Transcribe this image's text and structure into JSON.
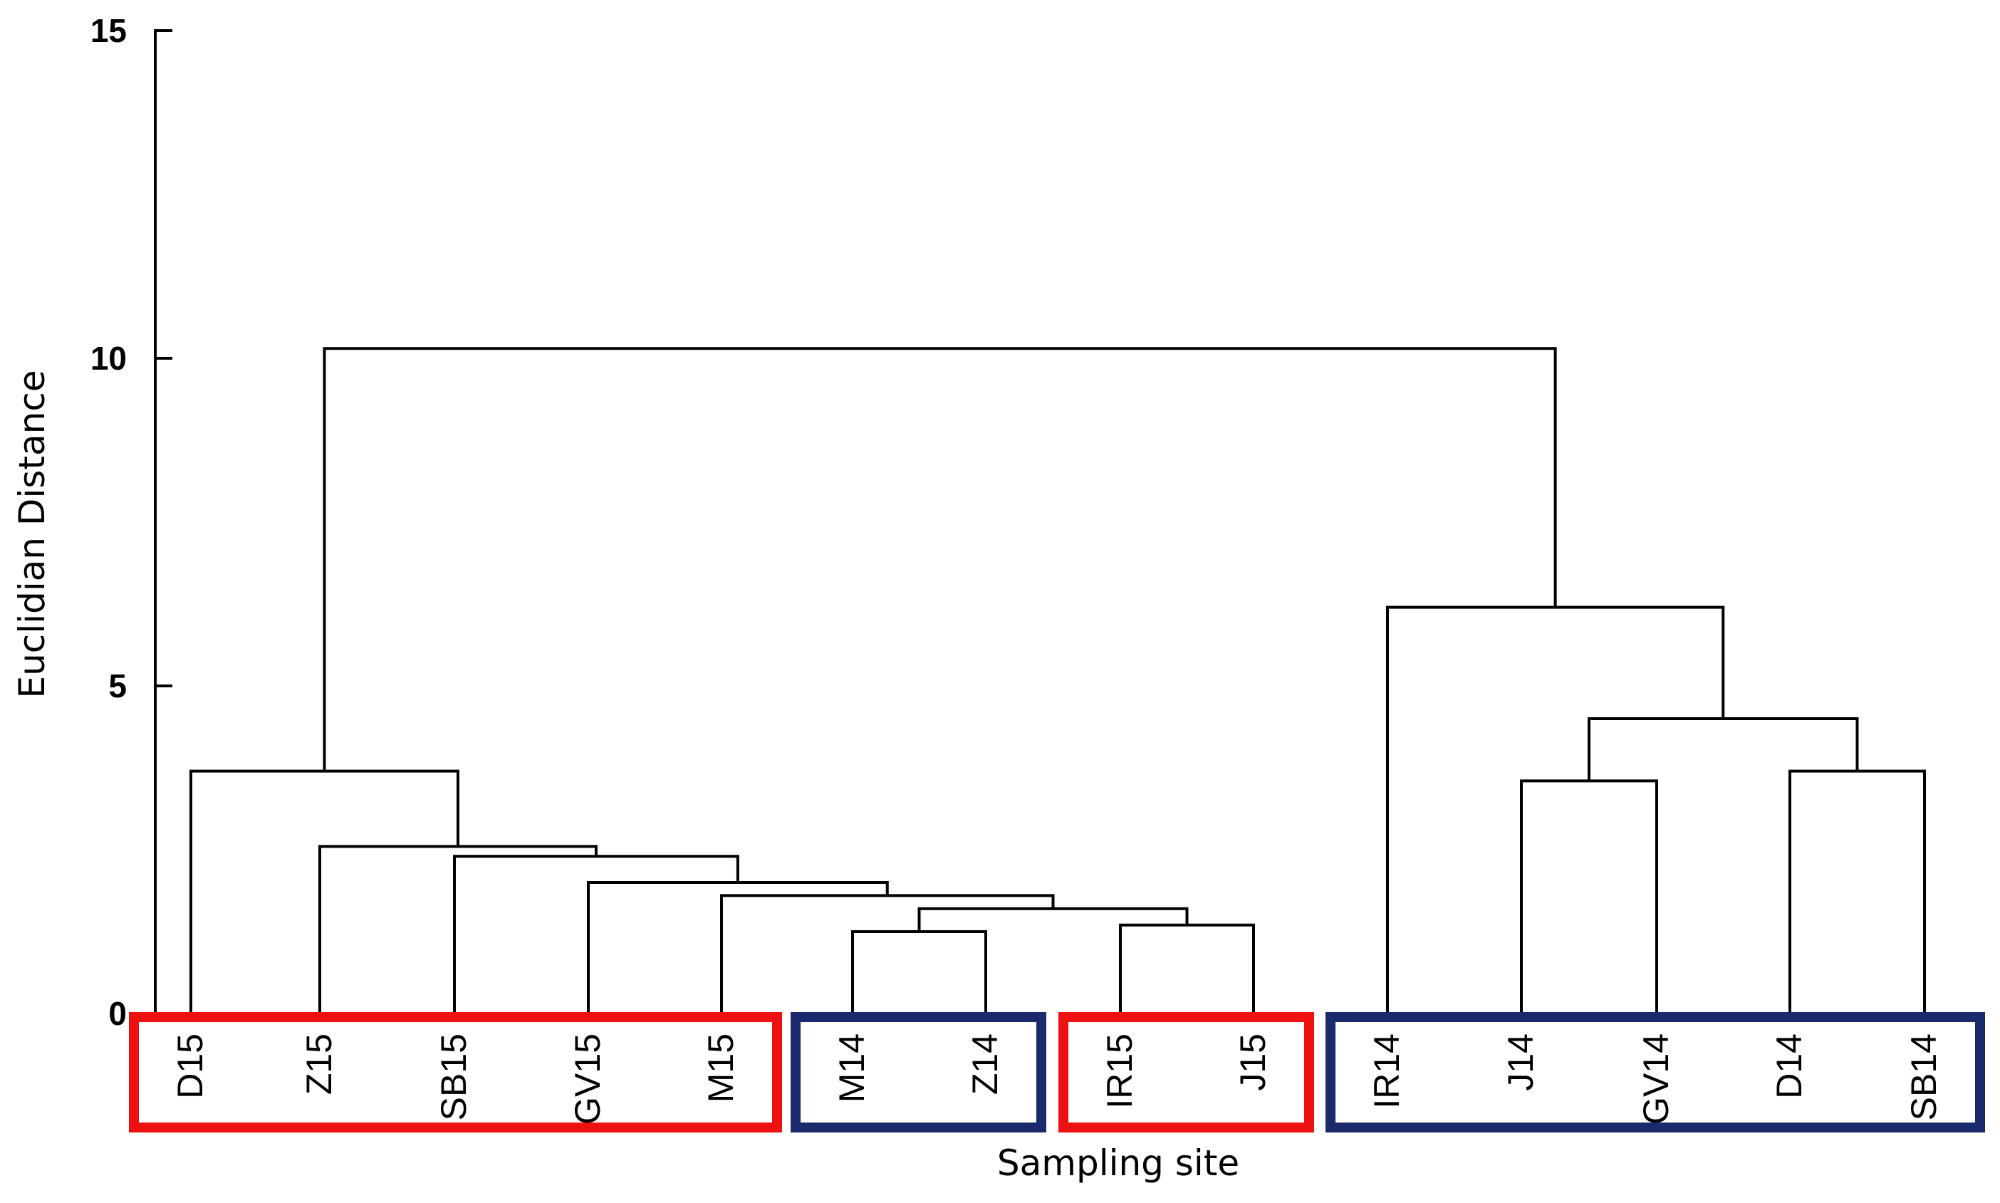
{
  "chart_data": {
    "type": "dendrogram",
    "title": "",
    "xlabel": "Sampling site",
    "ylabel": "Euclidian Distance",
    "ylim": [
      0,
      15
    ],
    "yticks": [
      0,
      5,
      10,
      15
    ],
    "leaves": [
      "D15",
      "Z15",
      "SB15",
      "GV15",
      "M15",
      "M14",
      "Z14",
      "IR15",
      "J15",
      "IR14",
      "J14",
      "GV14",
      "D14",
      "SB14"
    ],
    "merges": [
      {
        "id": "n1",
        "left": "M14",
        "right": "Z14",
        "height": 1.25
      },
      {
        "id": "n2",
        "left": "IR15",
        "right": "J15",
        "height": 1.35
      },
      {
        "id": "n3",
        "left": "n1",
        "right": "n2",
        "height": 1.6
      },
      {
        "id": "n4",
        "left": "M15",
        "right": "n3",
        "height": 1.8
      },
      {
        "id": "n5",
        "left": "GV15",
        "right": "n4",
        "height": 2.0
      },
      {
        "id": "n6",
        "left": "SB15",
        "right": "n5",
        "height": 2.4
      },
      {
        "id": "n7",
        "left": "Z15",
        "right": "n6",
        "height": 2.55
      },
      {
        "id": "n8",
        "left": "D15",
        "right": "n7",
        "height": 3.7
      },
      {
        "id": "n9",
        "left": "J14",
        "right": "GV14",
        "height": 3.55
      },
      {
        "id": "n10",
        "left": "D14",
        "right": "SB14",
        "height": 3.7
      },
      {
        "id": "n11",
        "left": "n9",
        "right": "n10",
        "height": 4.5
      },
      {
        "id": "n12",
        "left": "IR14",
        "right": "n11",
        "height": 6.2
      },
      {
        "id": "n13",
        "left": "n8",
        "right": "n12",
        "height": 10.15
      }
    ],
    "groups": [
      {
        "members": [
          "D15",
          "Z15",
          "SB15",
          "GV15",
          "M15"
        ],
        "color": "#ee1111"
      },
      {
        "members": [
          "M14",
          "Z14"
        ],
        "color": "#1a2a6c"
      },
      {
        "members": [
          "IR15",
          "J15"
        ],
        "color": "#ee1111"
      },
      {
        "members": [
          "IR14",
          "J14",
          "GV14",
          "D14",
          "SB14"
        ],
        "color": "#1a2a6c"
      }
    ]
  }
}
